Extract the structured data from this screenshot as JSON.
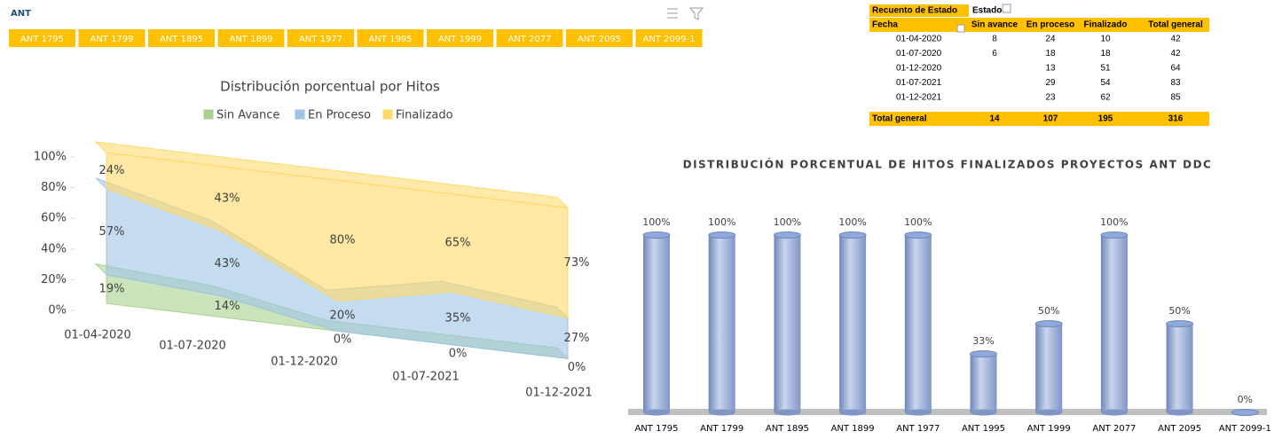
{
  "slicer": {
    "title": "ANT",
    "items": [
      "ANT 1795",
      "ANT 1799",
      "ANT 1895",
      "ANT 1899",
      "ANT 1977",
      "ANT 1995",
      "ANT 1999",
      "ANT 2077",
      "ANT 2095",
      "ANT 2099-1"
    ]
  },
  "pivot_table": {
    "header_top": [
      "Recuento de Estado",
      "Estado"
    ],
    "columns": [
      "Fecha",
      "Sin avance",
      "En proceso",
      "Finalizado",
      "Total general"
    ],
    "rows": [
      [
        "01-04-2020",
        8,
        24,
        10,
        42
      ],
      [
        "01-07-2020",
        6,
        18,
        18,
        42
      ],
      [
        "01-12-2020",
        null,
        13,
        51,
        64
      ],
      [
        "01-07-2021",
        null,
        29,
        54,
        83
      ],
      [
        "01-12-2021",
        null,
        23,
        62,
        85
      ]
    ],
    "total": [
      "Total general",
      14,
      107,
      195,
      316
    ]
  },
  "chart_data": [
    {
      "type": "area",
      "title": "Distribución porcentual por Hitos",
      "categories": [
        "01-04-2020",
        "01-07-2020",
        "01-12-2020",
        "01-07-2021",
        "01-12-2021"
      ],
      "series": [
        {
          "name": "Sin Avance",
          "color": "#a9d18e",
          "values": [
            19,
            14,
            0,
            0,
            0
          ],
          "value_labels": [
            "19%",
            "14%",
            "0%",
            "0%",
            "0%"
          ]
        },
        {
          "name": "En Proceso",
          "color": "#9dc3e6",
          "values": [
            57,
            43,
            20,
            35,
            27
          ],
          "value_labels": [
            "57%",
            "43%",
            "20%",
            "35%",
            "27%"
          ]
        },
        {
          "name": "Finalizado",
          "color": "#ffd966",
          "values": [
            24,
            43,
            80,
            65,
            73
          ],
          "value_labels": [
            "24%",
            "43%",
            "80%",
            "65%",
            "73%"
          ]
        }
      ],
      "ylim": [
        0,
        100
      ],
      "yticks": [
        {
          "value": 0,
          "label": "0%"
        },
        {
          "value": 20,
          "label": "20%"
        },
        {
          "value": 40,
          "label": "40%"
        },
        {
          "value": 60,
          "label": "60%"
        },
        {
          "value": 80,
          "label": "80%"
        },
        {
          "value": 100,
          "label": "100%"
        }
      ]
    },
    {
      "type": "bar",
      "title": "DISTRIBUCIÓN PORCENTUAL DE HITOS FINALIZADOS PROYECTOS ANT DDC",
      "categories": [
        "ANT 1795",
        "ANT 1799",
        "ANT 1895",
        "ANT 1899",
        "ANT 1977",
        "ANT 1995",
        "ANT 1999",
        "ANT 2077",
        "ANT 2095",
        "ANT 2099-1"
      ],
      "values": [
        100,
        100,
        100,
        100,
        100,
        33,
        50,
        100,
        50,
        0
      ],
      "value_labels": [
        "100%",
        "100%",
        "100%",
        "100%",
        "100%",
        "33%",
        "50%",
        "100%",
        "50%",
        "0%"
      ],
      "color": "#8ea9db",
      "ylim": [
        0,
        100
      ]
    }
  ]
}
